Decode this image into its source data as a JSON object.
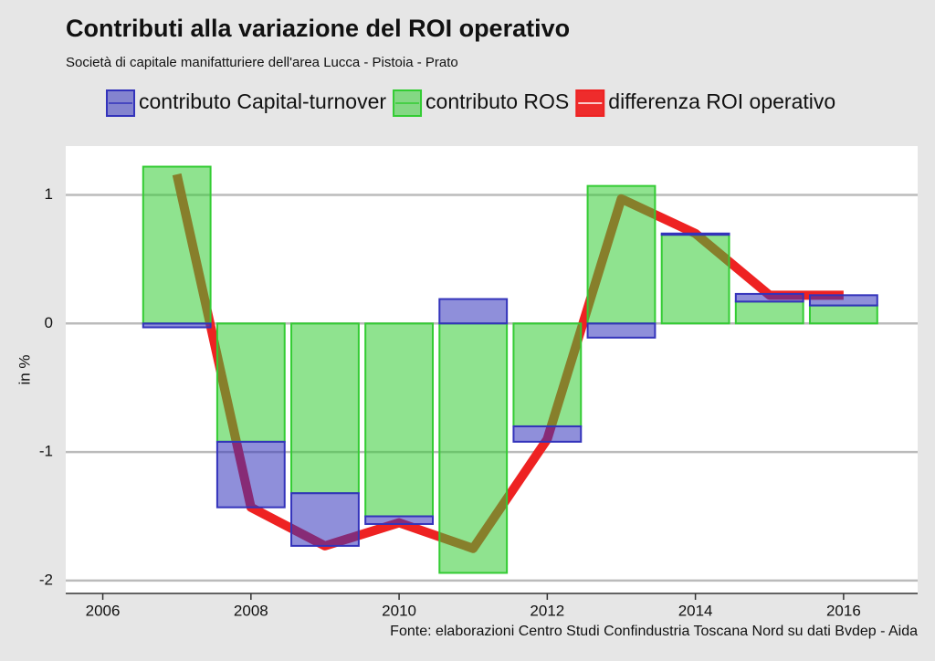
{
  "chart_data": {
    "type": "bar",
    "title": "Contributi alla variazione del ROI operativo",
    "subtitle": "Società di capitale manifatturiere dell'area Lucca - Pistoia - Prato",
    "ylabel": "in %",
    "source": "Fonte: elaborazioni Centro Studi Confindustria Toscana Nord su dati Bvdep - Aida",
    "x": [
      2007,
      2008,
      2009,
      2010,
      2011,
      2012,
      2013,
      2014,
      2015,
      2016
    ],
    "series": [
      {
        "name": "contributo Capital-turnover",
        "color": "#3333bb",
        "values": [
          -0.03,
          -0.51,
          -0.41,
          -0.06,
          0.19,
          -0.12,
          -0.11,
          0.01,
          0.06,
          0.08
        ]
      },
      {
        "name": "contributo ROS",
        "color": "#33cc33",
        "values": [
          1.22,
          -0.92,
          -1.32,
          -1.5,
          -1.94,
          -0.8,
          1.07,
          0.69,
          0.17,
          0.14
        ]
      },
      {
        "name": "differenza ROI operativo",
        "color": "#ee2222",
        "type": "line",
        "values": [
          1.16,
          -1.43,
          -1.73,
          -1.55,
          -1.75,
          -0.9,
          0.97,
          0.7,
          0.22,
          0.22
        ]
      }
    ],
    "xlim": [
      2005.5,
      2017
    ],
    "xticks": [
      2006,
      2008,
      2010,
      2012,
      2014,
      2016
    ],
    "ylim": [
      -2.1,
      1.38
    ],
    "yticks": [
      -2,
      -1,
      0,
      1
    ],
    "grid": true,
    "legend": "top"
  }
}
